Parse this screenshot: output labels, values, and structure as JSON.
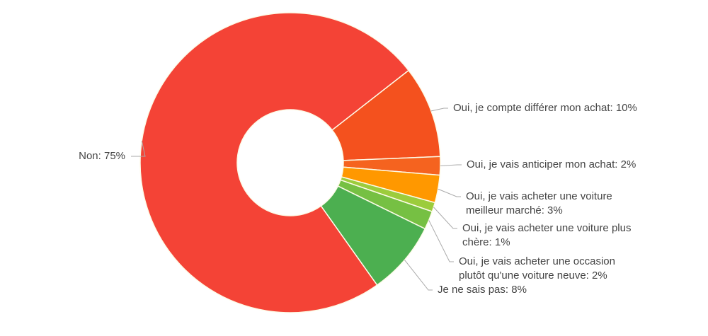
{
  "chart_data": {
    "type": "pie",
    "donut": true,
    "title": "",
    "legend": "labeled",
    "slices": [
      {
        "lines": [
          "Oui, je compte différer mon achat: 10%"
        ],
        "label": "Oui, je compte différer mon achat",
        "value": 10,
        "color": "#f4511e"
      },
      {
        "lines": [
          "Oui, je vais anticiper mon achat: 2%"
        ],
        "label": "Oui, je vais anticiper mon achat",
        "value": 2,
        "color": "#f5631f"
      },
      {
        "lines": [
          "Oui, je vais acheter une voiture",
          "meilleur marché: 3%"
        ],
        "label": "Oui, je vais acheter une voiture meilleur marché",
        "value": 3,
        "color": "#ff9800"
      },
      {
        "lines": [
          "Oui, je vais acheter une voiture plus",
          "chère: 1%"
        ],
        "label": "Oui, je vais acheter une voiture plus chère",
        "value": 1,
        "color": "#9ccc3c"
      },
      {
        "lines": [
          "Oui, je vais acheter une occasion",
          "plutôt qu'une voiture neuve: 2%"
        ],
        "label": "Oui, je vais acheter une occasion plutôt qu'une voiture neuve",
        "value": 2,
        "color": "#76c043"
      },
      {
        "lines": [
          "Je ne sais pas: 8%"
        ],
        "label": "Je ne sais pas",
        "value": 8,
        "color": "#4caf50"
      },
      {
        "lines": [
          "Non: 75%"
        ],
        "label": "Non",
        "value": 75,
        "color": "#f44336"
      }
    ]
  }
}
